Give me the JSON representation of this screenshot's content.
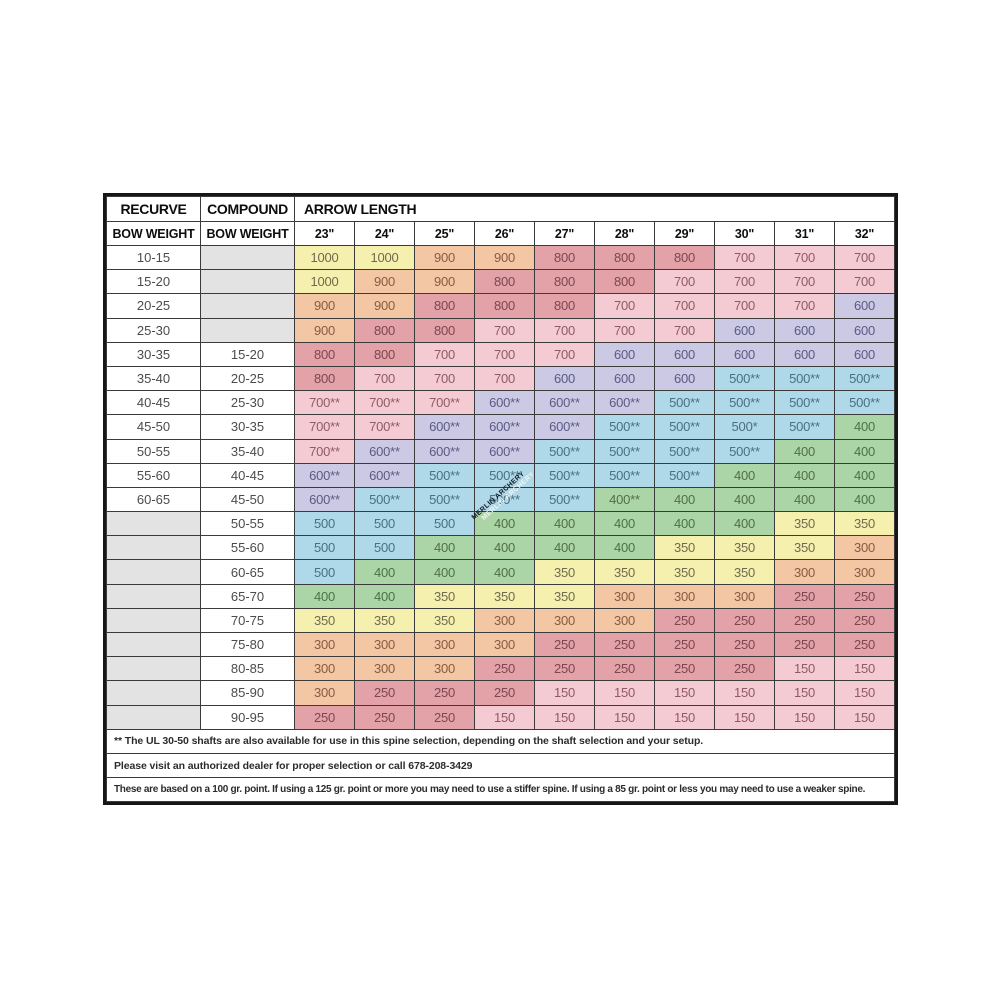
{
  "chart_data": {
    "type": "table",
    "header": {
      "recurve": "RECURVE",
      "compound": "COMPOUND",
      "arrow_length": "ARROW LENGTH",
      "bow_weight": "BOW WEIGHT",
      "arrow_columns": [
        "23\"",
        "24\"",
        "25\"",
        "26\"",
        "27\"",
        "28\"",
        "29\"",
        "30\"",
        "31\"",
        "32\""
      ]
    },
    "rows": [
      {
        "recurve": "10-15",
        "compound": "",
        "spines": [
          "1000",
          "1000",
          "900",
          "900",
          "800",
          "800",
          "800",
          "700",
          "700",
          "700"
        ]
      },
      {
        "recurve": "15-20",
        "compound": "",
        "spines": [
          "1000",
          "900",
          "900",
          "800",
          "800",
          "800",
          "700",
          "700",
          "700",
          "700"
        ]
      },
      {
        "recurve": "20-25",
        "compound": "",
        "spines": [
          "900",
          "900",
          "800",
          "800",
          "800",
          "700",
          "700",
          "700",
          "700",
          "600"
        ]
      },
      {
        "recurve": "25-30",
        "compound": "",
        "spines": [
          "900",
          "800",
          "800",
          "700",
          "700",
          "700",
          "700",
          "600",
          "600",
          "600"
        ]
      },
      {
        "recurve": "30-35",
        "compound": "15-20",
        "spines": [
          "800",
          "800",
          "700",
          "700",
          "700",
          "600",
          "600",
          "600",
          "600",
          "600"
        ]
      },
      {
        "recurve": "35-40",
        "compound": "20-25",
        "spines": [
          "800",
          "700",
          "700",
          "700",
          "600",
          "600",
          "600",
          "500**",
          "500**",
          "500**"
        ]
      },
      {
        "recurve": "40-45",
        "compound": "25-30",
        "spines": [
          "700**",
          "700**",
          "700**",
          "600**",
          "600**",
          "600**",
          "500**",
          "500**",
          "500**",
          "500**"
        ]
      },
      {
        "recurve": "45-50",
        "compound": "30-35",
        "spines": [
          "700**",
          "700**",
          "600**",
          "600**",
          "600**",
          "500**",
          "500**",
          "500*",
          "500**",
          "400"
        ]
      },
      {
        "recurve": "50-55",
        "compound": "35-40",
        "spines": [
          "700**",
          "600**",
          "600**",
          "600**",
          "500**",
          "500**",
          "500**",
          "500**",
          "400",
          "400"
        ]
      },
      {
        "recurve": "55-60",
        "compound": "40-45",
        "spines": [
          "600**",
          "600**",
          "500**",
          "500**",
          "500**",
          "500**",
          "500**",
          "400",
          "400",
          "400"
        ]
      },
      {
        "recurve": "60-65",
        "compound": "45-50",
        "spines": [
          "600**",
          "500**",
          "500**",
          "500**",
          "500**",
          "400**",
          "400",
          "400",
          "400",
          "400"
        ]
      },
      {
        "recurve": "",
        "compound": "50-55",
        "spines": [
          "500",
          "500",
          "500",
          "400",
          "400",
          "400",
          "400",
          "400",
          "350",
          "350"
        ]
      },
      {
        "recurve": "",
        "compound": "55-60",
        "spines": [
          "500",
          "500",
          "400",
          "400",
          "400",
          "400",
          "350",
          "350",
          "350",
          "300"
        ]
      },
      {
        "recurve": "",
        "compound": "60-65",
        "spines": [
          "500",
          "400",
          "400",
          "400",
          "350",
          "350",
          "350",
          "350",
          "300",
          "300"
        ]
      },
      {
        "recurve": "",
        "compound": "65-70",
        "spines": [
          "400",
          "400",
          "350",
          "350",
          "350",
          "300",
          "300",
          "300",
          "250",
          "250"
        ]
      },
      {
        "recurve": "",
        "compound": "70-75",
        "spines": [
          "350",
          "350",
          "350",
          "300",
          "300",
          "300",
          "250",
          "250",
          "250",
          "250"
        ]
      },
      {
        "recurve": "",
        "compound": "75-80",
        "spines": [
          "300",
          "300",
          "300",
          "300",
          "250",
          "250",
          "250",
          "250",
          "250",
          "250"
        ]
      },
      {
        "recurve": "",
        "compound": "80-85",
        "spines": [
          "300",
          "300",
          "300",
          "250",
          "250",
          "250",
          "250",
          "250",
          "150",
          "150"
        ]
      },
      {
        "recurve": "",
        "compound": "85-90",
        "spines": [
          "300",
          "250",
          "250",
          "250",
          "150",
          "150",
          "150",
          "150",
          "150",
          "150"
        ]
      },
      {
        "recurve": "",
        "compound": "90-95",
        "spines": [
          "250",
          "250",
          "250",
          "150",
          "150",
          "150",
          "150",
          "150",
          "150",
          "150"
        ]
      }
    ]
  },
  "value_colors": {
    "1000": "yellow",
    "900": "peach",
    "800": "rose",
    "700": "pink",
    "600": "lavender",
    "500": "blue",
    "400": "green",
    "350": "yellow",
    "300": "peach",
    "250": "rose",
    "150": "pink"
  },
  "colors": {
    "yellow": {
      "bg": "#F5F0AE",
      "fg": "#6F6B4E"
    },
    "peach": {
      "bg": "#F3C7A3",
      "fg": "#8A5A43"
    },
    "rose": {
      "bg": "#E2A2A8",
      "fg": "#7D4650"
    },
    "pink": {
      "bg": "#F5CBD3",
      "fg": "#8F5A66"
    },
    "lavender": {
      "bg": "#CBC9E3",
      "fg": "#5C5A85"
    },
    "blue": {
      "bg": "#AFD8E8",
      "fg": "#4B6F83"
    },
    "green": {
      "bg": "#ACD5A7",
      "fg": "#4F7049"
    },
    "blank": {
      "bg": "#E3E3E3",
      "fg": "#4F4F4F"
    }
  },
  "watermark": {
    "text": "MERLIN ARCHERY",
    "shadow_text": "MERLIN ARCHERY"
  },
  "notes": [
    "** The UL 30-50 shafts are also available for use in this spine selection, depending on the shaft selection and your setup.",
    "Please visit an authorized dealer for proper selection or call 678-208-3429",
    "These are based on a 100 gr. point. If using a 125 gr. point or more you may need to use a stiffer spine. If using a 85 gr. point or less you may need to use a weaker spine."
  ]
}
